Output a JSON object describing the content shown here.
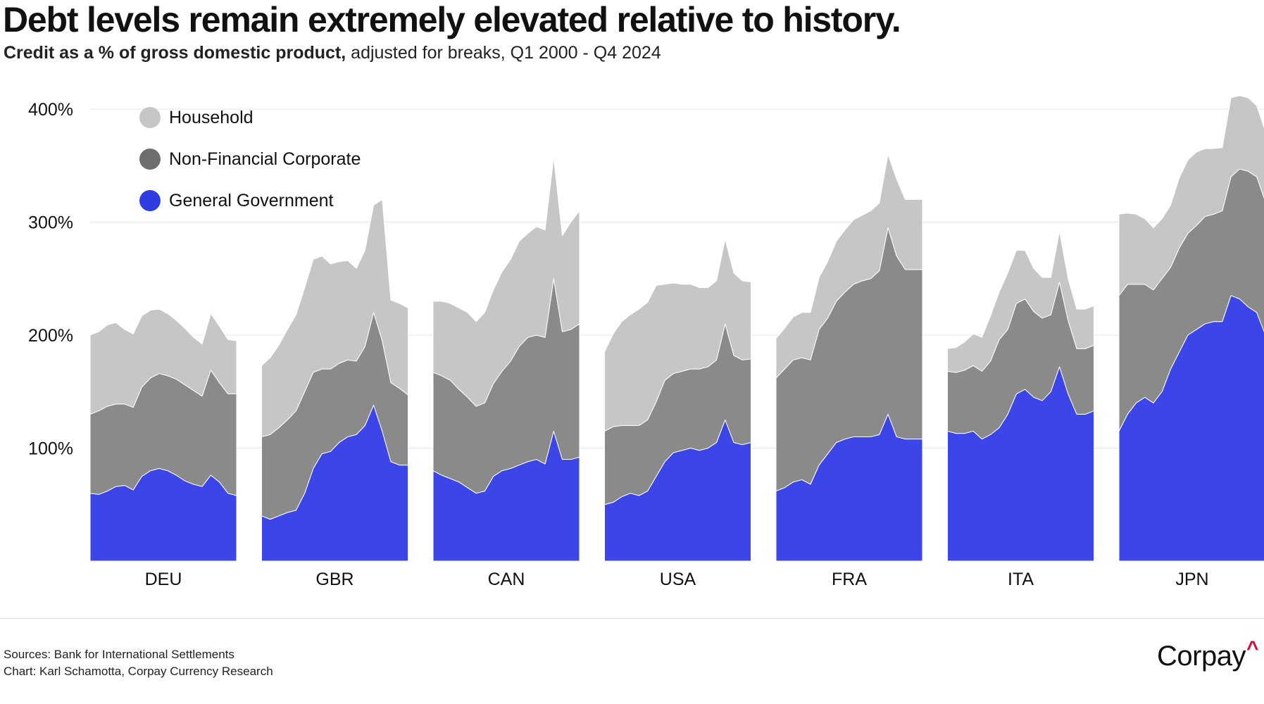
{
  "title": "Debt levels remain extremely elevated relative to history.",
  "subtitle_bold": "Credit as a % of gross domestic product,",
  "subtitle_rest": " adjusted for breaks, Q1 2000 - Q4 2024",
  "sources_line1": "Sources: Bank for International Settlements",
  "sources_line2": "Chart: Karl Schamotta, Corpay Currency Research",
  "logo_text": "Corpay",
  "logo_mark": "^",
  "colors": {
    "household": "#c6c6c6",
    "corporate": "#8a8a8a",
    "government": "#3c46e8",
    "legend_household": "#c6c6c6",
    "legend_corporate": "#6e6e6e",
    "legend_government": "#2f3ce0",
    "grid": "#e6e6e6",
    "brand_accent": "#d0103a"
  },
  "chart_data": {
    "type": "area",
    "stacked": true,
    "small_multiples": true,
    "x_range": [
      "Q1 2000",
      "Q4 2024"
    ],
    "ylim": [
      0,
      420
    ],
    "y_ticks": [
      100,
      200,
      300,
      400
    ],
    "y_tick_labels": [
      "100%",
      "200%",
      "300%",
      "400%"
    ],
    "grid": true,
    "legend_position": "top-left",
    "legend": [
      "Household",
      "Non-Financial Corporate",
      "General Government"
    ],
    "panels": [
      {
        "label": "DEU",
        "series": [
          {
            "name": "General Government",
            "values": [
              60,
              59,
              62,
              66,
              67,
              63,
              75,
              80,
              82,
              80,
              76,
              71,
              68,
              66,
              76,
              70,
              60,
              58
            ]
          },
          {
            "name": "Non-Financial Corporate",
            "values": [
              70,
              74,
              75,
              73,
              72,
              73,
              79,
              82,
              84,
              84,
              85,
              85,
              83,
              80,
              93,
              88,
              88,
              90
            ]
          },
          {
            "name": "Household",
            "values": [
              70,
              70,
              72,
              72,
              66,
              65,
              63,
              60,
              57,
              55,
              52,
              50,
              47,
              46,
              50,
              50,
              48,
              47
            ]
          }
        ]
      },
      {
        "label": "GBR",
        "series": [
          {
            "name": "General Government",
            "values": [
              40,
              37,
              40,
              43,
              45,
              60,
              82,
              95,
              97,
              105,
              110,
              112,
              120,
              138,
              115,
              88,
              85,
              85
            ]
          },
          {
            "name": "Non-Financial Corporate",
            "values": [
              70,
              75,
              78,
              82,
              88,
              90,
              85,
              75,
              73,
              70,
              68,
              65,
              70,
              82,
              80,
              70,
              68,
              62
            ]
          },
          {
            "name": "Household",
            "values": [
              63,
              68,
              73,
              80,
              85,
              92,
              100,
              100,
              93,
              90,
              88,
              82,
              85,
              95,
              125,
              73,
              75,
              77
            ]
          }
        ]
      },
      {
        "label": "CAN",
        "series": [
          {
            "name": "General Government",
            "values": [
              80,
              76,
              73,
              70,
              65,
              60,
              62,
              75,
              80,
              82,
              85,
              88,
              90,
              86,
              115,
              90,
              90,
              92
            ]
          },
          {
            "name": "Non-Financial Corporate",
            "values": [
              87,
              88,
              87,
              82,
              80,
              77,
              78,
              82,
              88,
              95,
              105,
              110,
              110,
              112,
              135,
              113,
              115,
              118
            ]
          },
          {
            "name": "Household",
            "values": [
              63,
              66,
              68,
              72,
              75,
              75,
              80,
              83,
              88,
              90,
              93,
              92,
              96,
              95,
              107,
              85,
              95,
              100
            ]
          }
        ]
      },
      {
        "label": "USA",
        "series": [
          {
            "name": "General Government",
            "values": [
              50,
              52,
              57,
              60,
              58,
              62,
              75,
              88,
              96,
              98,
              100,
              98,
              100,
              105,
              125,
              105,
              103,
              105
            ]
          },
          {
            "name": "Non-Financial Corporate",
            "values": [
              65,
              67,
              63,
              60,
              62,
              63,
              66,
              72,
              70,
              70,
              70,
              72,
              72,
              73,
              85,
              77,
              75,
              74
            ]
          },
          {
            "name": "Household",
            "values": [
              70,
              82,
              92,
              98,
              103,
              104,
              103,
              85,
              80,
              77,
              75,
              72,
              70,
              70,
              75,
              73,
              70,
              68
            ]
          }
        ]
      },
      {
        "label": "FRA",
        "series": [
          {
            "name": "General Government",
            "values": [
              62,
              65,
              70,
              72,
              68,
              85,
              95,
              105,
              108,
              110,
              110,
              110,
              112,
              130,
              110,
              108,
              108,
              108
            ]
          },
          {
            "name": "Non-Financial Corporate",
            "values": [
              100,
              105,
              108,
              108,
              110,
              120,
              120,
              125,
              130,
              135,
              138,
              140,
              145,
              165,
              160,
              150,
              150,
              150
            ]
          },
          {
            "name": "Household",
            "values": [
              35,
              36,
              38,
              40,
              42,
              46,
              50,
              53,
              55,
              57,
              58,
              60,
              60,
              65,
              68,
              62,
              62,
              62
            ]
          }
        ]
      },
      {
        "label": "ITA",
        "series": [
          {
            "name": "General Government",
            "values": [
              115,
              113,
              113,
              115,
              108,
              112,
              118,
              130,
              148,
              152,
              145,
              142,
              150,
              172,
              148,
              130,
              130,
              133
            ]
          },
          {
            "name": "Non-Financial Corporate",
            "values": [
              53,
              54,
              56,
              58,
              60,
              65,
              78,
              75,
              80,
              80,
              76,
              73,
              68,
              75,
              65,
              58,
              58,
              58
            ]
          },
          {
            "name": "Household",
            "values": [
              20,
              22,
              25,
              28,
              30,
              40,
              42,
              50,
              47,
              43,
              38,
              36,
              33,
              45,
              37,
              35,
              35,
              35
            ]
          }
        ]
      },
      {
        "label": "JPN",
        "series": [
          {
            "name": "General Government",
            "values": [
              115,
              130,
              140,
              145,
              140,
              150,
              170,
              185,
              200,
              205,
              210,
              212,
              212,
              235,
              232,
              225,
              220,
              200
            ]
          },
          {
            "name": "Non-Financial Corporate",
            "values": [
              120,
              115,
              105,
              100,
              100,
              100,
              90,
              92,
              90,
              92,
              95,
              95,
              98,
              105,
              115,
              120,
              120,
              118
            ]
          },
          {
            "name": "Household",
            "values": [
              72,
              63,
              62,
              58,
              55,
              53,
              55,
              62,
              65,
              65,
              60,
              58,
              56,
              70,
              65,
              65,
              63,
              62
            ]
          }
        ]
      }
    ]
  }
}
